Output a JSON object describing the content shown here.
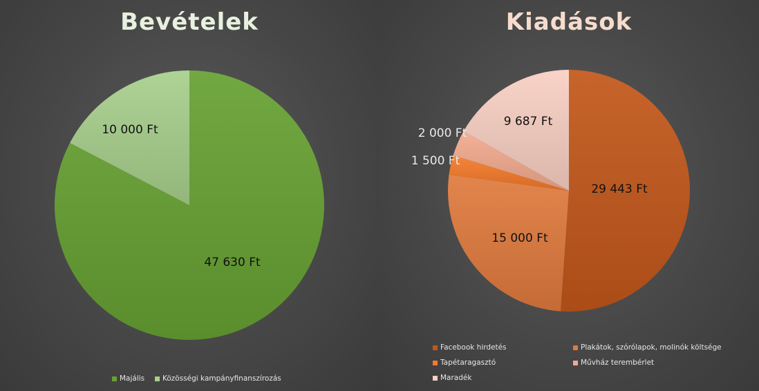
{
  "chart_data": [
    {
      "type": "pie",
      "title": "Bevételek",
      "categories": [
        "Majális",
        "Közösségi kampányfinanszírozás"
      ],
      "values": [
        47630,
        10000
      ],
      "data_labels": [
        "47 630 Ft",
        "10 000 Ft"
      ],
      "colors": [
        "#66a032",
        "#a7cf8c"
      ],
      "legend": "bottom"
    },
    {
      "type": "pie",
      "title": "Kiadások",
      "categories": [
        "Facebook hirdetés",
        "Plakátok, szórólapok, molinók költsége",
        "Tapétaragasztó",
        "Művház terembérlet",
        "Maradék"
      ],
      "values": [
        29443,
        15000,
        1500,
        2000,
        9687
      ],
      "data_labels": [
        "29 443 Ft",
        "15 000 Ft",
        "1 500 Ft",
        "2 000 Ft",
        "9 687 Ft"
      ],
      "colors": [
        "#c2561a",
        "#e07a3d",
        "#f47a2a",
        "#f2aa8e",
        "#f8cfc2"
      ],
      "legend": "bottom"
    }
  ]
}
